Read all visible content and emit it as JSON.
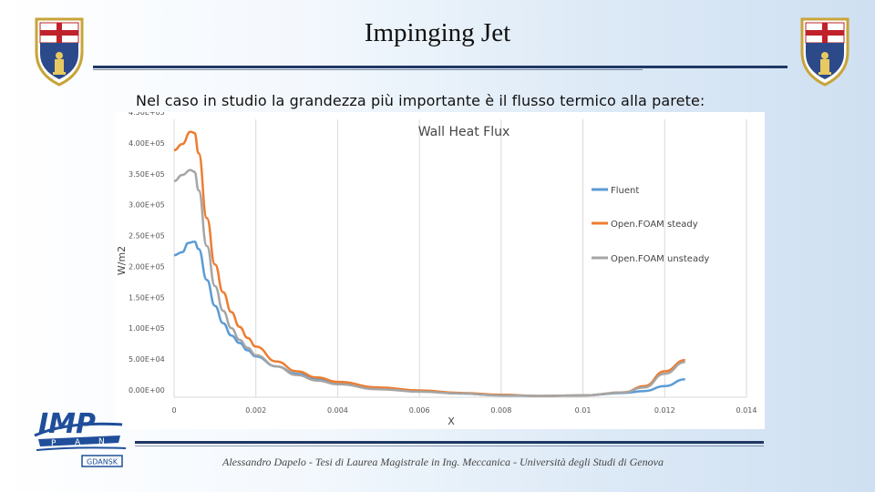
{
  "slide": {
    "title": "Impinging Jet",
    "subtitle": "Nel caso in studio la grandezza più importante è il flusso termico alla parete:",
    "footer": "Alessandro Dapelo  - Tesi di Laurea Magistrale in Ing. Meccanica - Università degli Studi di Genova"
  },
  "logos": {
    "left_crest": "university-crest",
    "right_crest": "university-crest",
    "imp_logo": {
      "text": "IMP",
      "letters": [
        "P",
        "A",
        "N"
      ],
      "city": "GDANSK"
    }
  },
  "chart_data": {
    "type": "line",
    "title": "Wall Heat Flux",
    "xlabel": "X",
    "ylabel": "W/m2",
    "xlim": [
      0,
      0.014
    ],
    "ylim": [
      0,
      450000
    ],
    "xticks": [
      0,
      0.002,
      0.004,
      0.006,
      0.008,
      0.01,
      0.012,
      0.014
    ],
    "xtick_labels": [
      "0",
      "0.002",
      "0.004",
      "0.006",
      "0.008",
      "0.01",
      "0.012",
      "0.014"
    ],
    "yticks": [
      0,
      50000,
      100000,
      150000,
      200000,
      250000,
      300000,
      350000,
      400000,
      450000
    ],
    "ytick_labels": [
      "0.00E+00",
      "5.00E+04",
      "1.00E+05",
      "1.50E+05",
      "2.00E+05",
      "2.50E+05",
      "3.00E+05",
      "3.50E+05",
      "4.00E+05",
      "4.50E+05"
    ],
    "grid": "vertical",
    "legend": "right",
    "series": [
      {
        "name": "Fluent",
        "color": "#5b9bd5",
        "x": [
          0,
          0.0002,
          0.00035,
          0.0005,
          0.0006,
          0.0008,
          0.001,
          0.0012,
          0.0014,
          0.0016,
          0.0018,
          0.002,
          0.0025,
          0.003,
          0.0035,
          0.004,
          0.005,
          0.006,
          0.007,
          0.008,
          0.009,
          0.01,
          0.011,
          0.0115,
          0.012,
          0.0125
        ],
        "y": [
          230000,
          235000,
          250000,
          252000,
          240000,
          190000,
          148000,
          120000,
          100000,
          88000,
          76000,
          66000,
          50000,
          38000,
          30000,
          24000,
          15000,
          10000,
          6000,
          3000,
          2000,
          3000,
          7000,
          10000,
          18000,
          29000
        ]
      },
      {
        "name": "Open.FOAM steady",
        "color": "#ed7d31",
        "x": [
          0,
          0.0002,
          0.0004,
          0.0005,
          0.0006,
          0.0008,
          0.001,
          0.0012,
          0.0014,
          0.0016,
          0.0018,
          0.002,
          0.0025,
          0.003,
          0.0035,
          0.004,
          0.005,
          0.006,
          0.007,
          0.008,
          0.009,
          0.01,
          0.011,
          0.0115,
          0.012,
          0.0125
        ],
        "y": [
          400000,
          410000,
          430000,
          428000,
          395000,
          290000,
          215000,
          170000,
          138000,
          114000,
          96000,
          82000,
          58000,
          42000,
          32000,
          25000,
          16000,
          11000,
          7000,
          4000,
          2000,
          3000,
          8000,
          18000,
          42000,
          60000
        ]
      },
      {
        "name": "Open.FOAM unsteady",
        "color": "#a5a5a5",
        "x": [
          0,
          0.0002,
          0.0004,
          0.0005,
          0.0006,
          0.0008,
          0.001,
          0.0012,
          0.0014,
          0.0016,
          0.0018,
          0.002,
          0.0025,
          0.003,
          0.0035,
          0.004,
          0.005,
          0.006,
          0.007,
          0.008,
          0.009,
          0.01,
          0.011,
          0.0115,
          0.012,
          0.0125
        ],
        "y": [
          350000,
          360000,
          368000,
          365000,
          335000,
          245000,
          180000,
          140000,
          112000,
          93000,
          80000,
          68000,
          50000,
          36000,
          27000,
          21000,
          13000,
          9000,
          6000,
          3000,
          2000,
          3000,
          8000,
          16000,
          38000,
          57000
        ]
      }
    ]
  }
}
